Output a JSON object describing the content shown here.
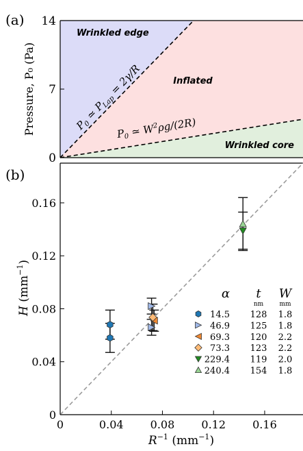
{
  "chart_data": [
    {
      "type": "area",
      "panel_label": "(a)",
      "ylabel": "Pressure, P₀ (Pa)",
      "xlabel": "",
      "ylim": [
        0,
        14
      ],
      "yticks": [
        "0",
        "7",
        "14"
      ],
      "regions": [
        {
          "name": "Wrinkled edge",
          "color": "#dcdcf8"
        },
        {
          "name": "Inflated",
          "color": "#fde0e0"
        },
        {
          "name": "Wrinkled core",
          "color": "#e1efdd"
        }
      ],
      "boundaries": [
        {
          "label": "P₀ ≃ P_Lap = 2γ/R",
          "label_main": "P",
          "label_sub": "0",
          "label_rest": " ≃ P",
          "label_sub2": "Lap",
          "label_tail": " = 2γ/R"
        },
        {
          "label": "P₀ ≃ W²ρg/(2R)",
          "label_main": "P",
          "label_sub": "0",
          "label_rest": " ≃ W",
          "label_sup": "2",
          "label_tail": "ρg/(2R)"
        }
      ]
    },
    {
      "type": "scatter",
      "panel_label": "(b)",
      "xlabel_main": "R",
      "xlabel_sup": "−1",
      "xlabel_unit": "(mm",
      "xlabel_unit_sup": "−1",
      "xlabel_close": ")",
      "ylabel_main": "H",
      "ylabel_unit": "(mm",
      "ylabel_unit_sup": "−1",
      "ylabel_close": ")",
      "xlim": [
        0,
        0.19
      ],
      "ylim": [
        0,
        0.19
      ],
      "xticks": [
        0,
        0.04,
        0.08,
        0.12,
        0.16
      ],
      "xtick_labels": [
        "0",
        "0.04",
        "0.08",
        "0.12",
        "0.16"
      ],
      "yticks": [
        0,
        0.04,
        0.08,
        0.12,
        0.16
      ],
      "ytick_labels": [
        "0",
        "0.04",
        "0.08",
        "0.12",
        "0.16"
      ],
      "guide_line": {
        "slope": 1,
        "style": "dashed",
        "color": "#999999"
      },
      "legend": {
        "placement": "lower-right",
        "headers": {
          "alpha": "α",
          "t": "t",
          "t_unit": "nm",
          "W": "W",
          "W_unit": "mm"
        }
      },
      "series": [
        {
          "alpha": "14.5",
          "t": "128",
          "W": "1.8",
          "marker": "hexagon",
          "color": "#1f77b4",
          "points": [
            {
              "x": 0.039,
              "y": 0.068,
              "err": 0.011
            },
            {
              "x": 0.039,
              "y": 0.058,
              "err": 0.011
            }
          ]
        },
        {
          "alpha": "46.9",
          "t": "125",
          "W": "1.8",
          "marker": "triangle-right",
          "color": "#9fb7e6",
          "points": [
            {
              "x": 0.0715,
              "y": 0.082,
              "err": 0.006
            },
            {
              "x": 0.0715,
              "y": 0.066,
              "err": 0.006
            }
          ]
        },
        {
          "alpha": "69.3",
          "t": "120",
          "W": "2.2",
          "marker": "triangle-left",
          "color": "#ee8833",
          "points": [
            {
              "x": 0.0735,
              "y": 0.071,
              "err": 0.008
            }
          ]
        },
        {
          "alpha": "73.3",
          "t": "123",
          "W": "2.2",
          "marker": "diamond",
          "color": "#ffbb77",
          "points": [
            {
              "x": 0.0725,
              "y": 0.0735,
              "err": 0.01
            }
          ]
        },
        {
          "alpha": "229.4",
          "t": "119",
          "W": "2.0",
          "marker": "triangle-down",
          "color": "#228b22",
          "points": [
            {
              "x": 0.143,
              "y": 0.139,
              "err": 0.014
            }
          ]
        },
        {
          "alpha": "240.4",
          "t": "154",
          "W": "1.8",
          "marker": "triangle-up",
          "color": "#99d594",
          "points": [
            {
              "x": 0.143,
              "y": 0.144,
              "err": 0.02
            }
          ]
        }
      ]
    }
  ]
}
